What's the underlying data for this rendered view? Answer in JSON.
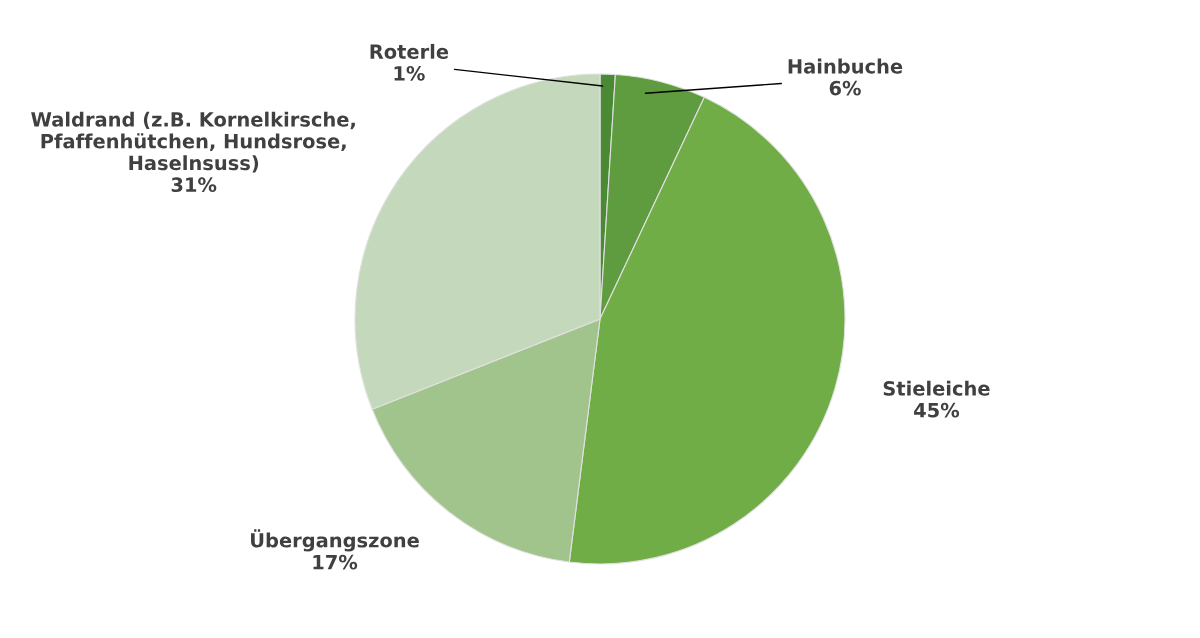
{
  "chart_data": {
    "type": "pie",
    "categories": [
      "Roterle",
      "Hainbuche",
      "Stieleiche",
      "Übergangszone",
      "Waldrand (z.B. Kornelkirsche,\nPfaffenhütchen, Hundsrose,\nHaselnsuss)"
    ],
    "values": [
      1,
      6,
      45,
      17,
      31
    ],
    "value_labels": [
      "1%",
      "6%",
      "45%",
      "17%",
      "31%"
    ],
    "colors": [
      "#4b8a34",
      "#5f9b3f",
      "#70ad47",
      "#a1c48d",
      "#c4d9bb"
    ]
  }
}
